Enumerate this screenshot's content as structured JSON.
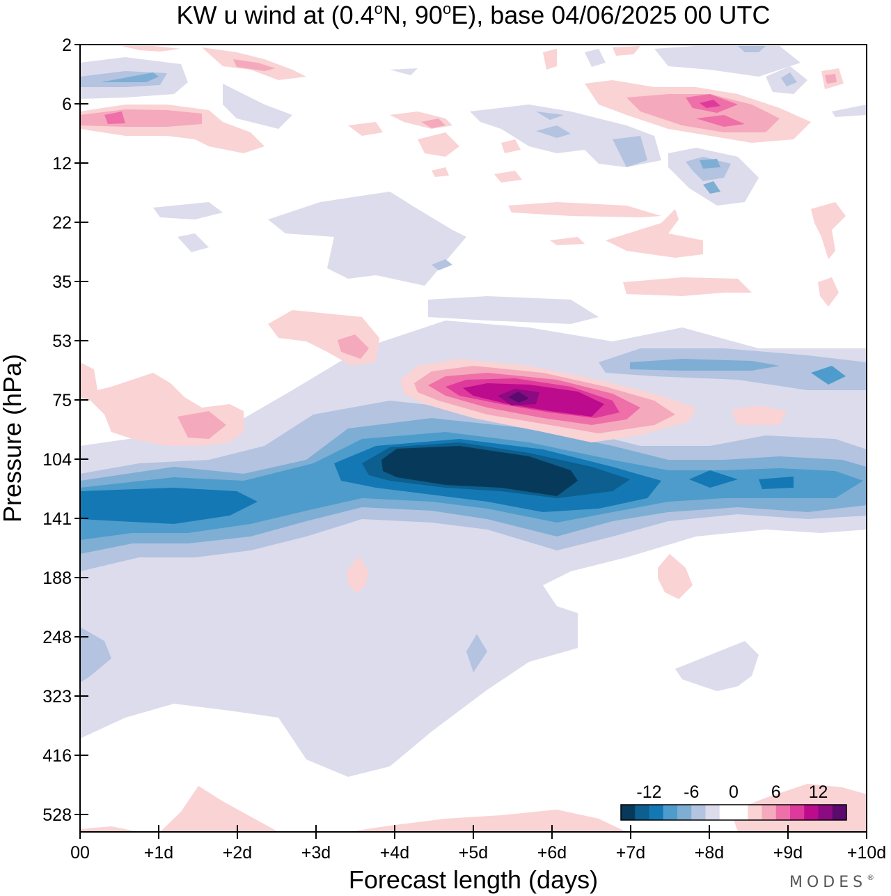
{
  "title": {
    "prefix": "KW u wind at (0.4",
    "lat_unit": "N, 90",
    "lon_unit": "E),  base 04/06/2025  00 UTC",
    "deg_symbol": "o"
  },
  "brand": "MODES",
  "brand_mark": "®",
  "chart_data": {
    "type": "heatmap",
    "title": "KW u wind at (0.4°N, 90°E),  base 04/06/2025  00 UTC",
    "xlabel": "Forecast length (days)",
    "ylabel": "Pressure (hPa)",
    "x_ticks": [
      "00",
      "+1d",
      "+2d",
      "+3d",
      "+4d",
      "+5d",
      "+6d",
      "+7d",
      "+8d",
      "+9d",
      "+10d"
    ],
    "x_range_days": [
      0,
      10
    ],
    "y_ticks": [
      "2",
      "6",
      "12",
      "22",
      "35",
      "53",
      "75",
      "104",
      "141",
      "188",
      "248",
      "323",
      "416",
      "528"
    ],
    "y_scale": "log-pressure, top 2 hPa to bottom ~680 hPa",
    "grid": false,
    "legend_position": "bottom-right",
    "colorbar": {
      "tick_labels": [
        "-12",
        "-6",
        "0",
        "6",
        "12"
      ],
      "levels": [
        -16,
        -14,
        -12,
        -10,
        -8,
        -6,
        -4,
        -2,
        0,
        2,
        4,
        6,
        8,
        10,
        12,
        14,
        16
      ],
      "colors": [
        "#073a5a",
        "#0c5f8e",
        "#1478b4",
        "#4e9ccb",
        "#7eaed3",
        "#b3c3e0",
        "#dcdcec",
        "#ffffff",
        "#ffffff",
        "#fad3d5",
        "#f5a9bd",
        "#ef6fa8",
        "#de3a9c",
        "#bd0b8d",
        "#8c0a82",
        "#5b0a6e"
      ]
    },
    "features": [
      {
        "name": "negative core",
        "day_range": [
          3.8,
          6.3
        ],
        "pressure_hPa": [
          100,
          125
        ],
        "value": -16
      },
      {
        "name": "negative band",
        "day_range": [
          0,
          10
        ],
        "pressure_hPa": [
          95,
          160
        ],
        "value": -8
      },
      {
        "name": "positive core",
        "day_range": [
          4.6,
          6.5
        ],
        "pressure_hPa": [
          66,
          82
        ],
        "value": 14
      },
      {
        "name": "positive band",
        "day_range": [
          4.0,
          7.8
        ],
        "pressure_hPa": [
          58,
          95
        ],
        "value": 6
      },
      {
        "name": "upper positive",
        "day_range": [
          0,
          2.5
        ],
        "pressure_hPa": [
          6,
          9
        ],
        "value": 6
      },
      {
        "name": "upper positive 2",
        "day_range": [
          6.5,
          9.5
        ],
        "pressure_hPa": [
          5,
          9
        ],
        "value": 6
      },
      {
        "name": "upper negative",
        "day_range": [
          0,
          1.3
        ],
        "pressure_hPa": [
          3,
          5
        ],
        "value": -6
      }
    ]
  }
}
